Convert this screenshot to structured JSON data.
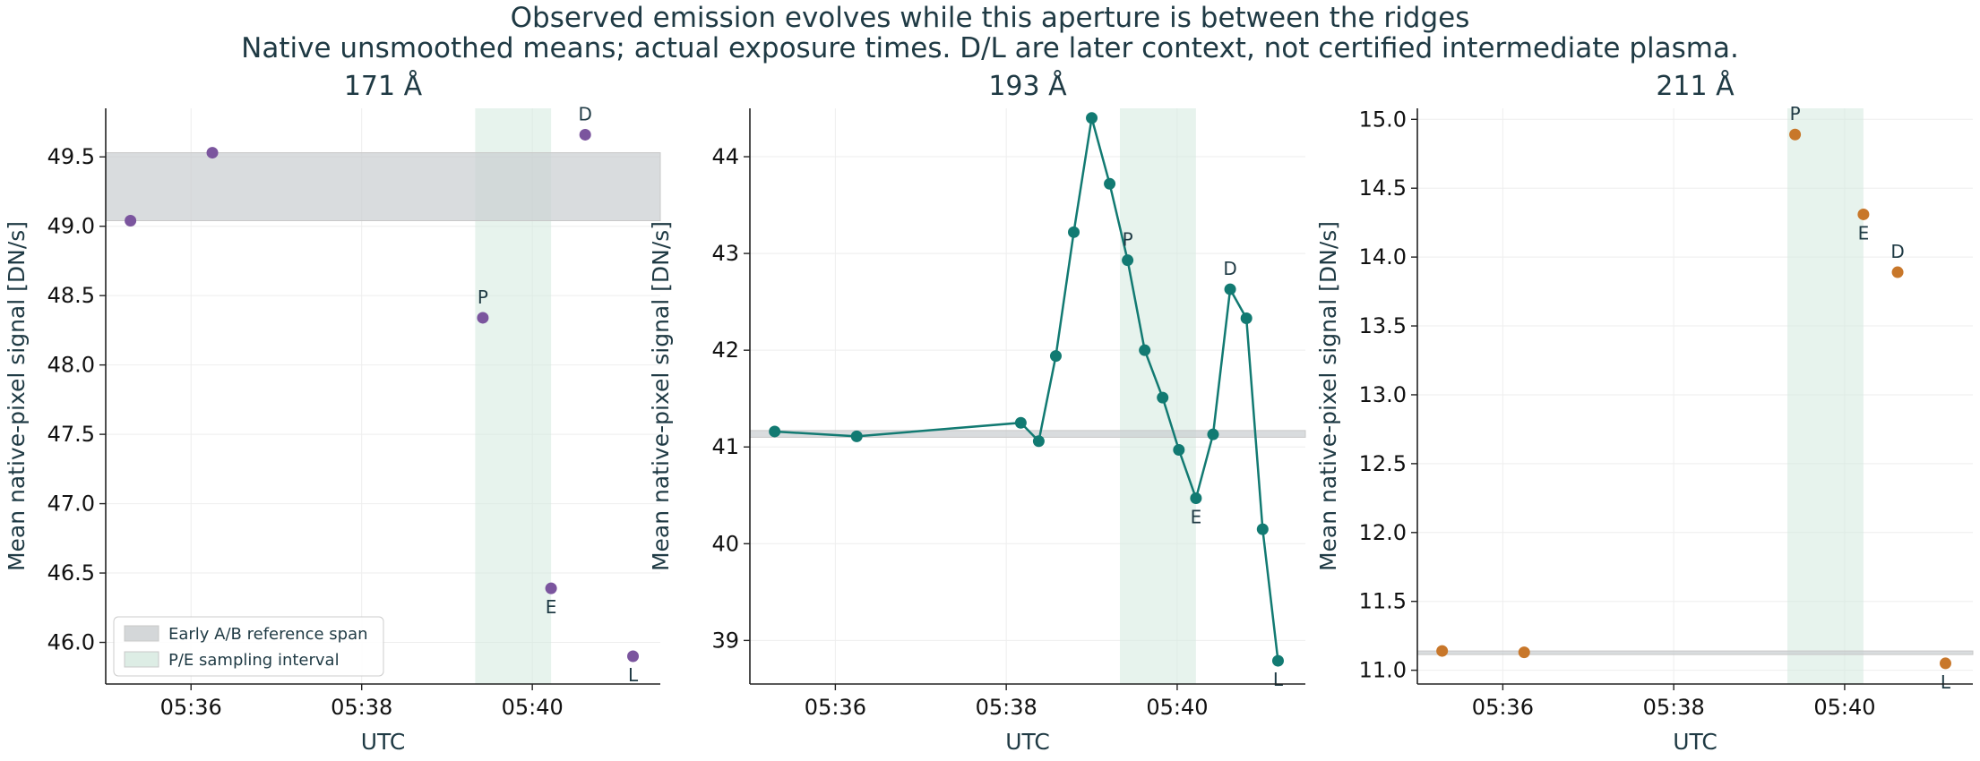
{
  "figure": {
    "title": "Observed emission evolves while this aperture is between the ridges",
    "subtitle": "Native unsmoothed means; actual exposure times. D/L are later context, not certified intermediate plasma."
  },
  "colors": {
    "text": "#1f3a44",
    "axis": "#222222",
    "grid": "#eeeeee",
    "reference_band": "#c9cdd0",
    "reference_line": "#c8c8c8",
    "pe_interval": "#d4e9de",
    "series_171": "#7b559e",
    "series_193": "#127a72",
    "series_211": "#c8772a"
  },
  "legend": {
    "placement": "lower-left of first panel",
    "items": [
      {
        "label": "Early A/B reference span",
        "kind": "reference"
      },
      {
        "label": "P/E sampling interval",
        "kind": "interval"
      }
    ]
  },
  "chart_data": [
    {
      "type": "scatter",
      "title": "171 Å",
      "xlabel": "UTC",
      "ylabel": "Mean native-pixel signal [DN/s]",
      "x_unit": "minutes after 05:00 UTC",
      "xlim": [
        35.0,
        41.5
      ],
      "ylim": [
        45.7,
        49.85
      ],
      "xticks": [
        {
          "v": 36,
          "label": "05:36"
        },
        {
          "v": 38,
          "label": "05:38"
        },
        {
          "v": 40,
          "label": "05:40"
        }
      ],
      "yticks": [
        {
          "v": 46.0,
          "label": "46.0"
        },
        {
          "v": 46.5,
          "label": "46.5"
        },
        {
          "v": 47.0,
          "label": "47.0"
        },
        {
          "v": 47.5,
          "label": "47.5"
        },
        {
          "v": 48.0,
          "label": "48.0"
        },
        {
          "v": 48.5,
          "label": "48.5"
        },
        {
          "v": 49.0,
          "label": "49.0"
        },
        {
          "v": 49.5,
          "label": "49.5"
        }
      ],
      "reference_span": [
        49.04,
        49.53
      ],
      "pe_interval": [
        39.33,
        40.22
      ],
      "connect_points": false,
      "color_key": "series_171",
      "points": [
        {
          "x": 35.29,
          "y": 49.04,
          "label": ""
        },
        {
          "x": 36.25,
          "y": 49.53,
          "label": ""
        },
        {
          "x": 39.42,
          "y": 48.34,
          "label": "P",
          "pos": "above"
        },
        {
          "x": 40.22,
          "y": 46.39,
          "label": "E",
          "pos": "below"
        },
        {
          "x": 40.62,
          "y": 49.66,
          "label": "D",
          "pos": "above"
        },
        {
          "x": 41.18,
          "y": 45.9,
          "label": "L",
          "pos": "below"
        }
      ]
    },
    {
      "type": "line",
      "title": "193 Å",
      "xlabel": "UTC",
      "ylabel": "Mean native-pixel signal [DN/s]",
      "x_unit": "minutes after 05:00 UTC",
      "xlim": [
        35.0,
        41.5
      ],
      "ylim": [
        38.55,
        44.5
      ],
      "xticks": [
        {
          "v": 36,
          "label": "05:36"
        },
        {
          "v": 38,
          "label": "05:38"
        },
        {
          "v": 40,
          "label": "05:40"
        }
      ],
      "yticks": [
        {
          "v": 39,
          "label": "39"
        },
        {
          "v": 40,
          "label": "40"
        },
        {
          "v": 41,
          "label": "41"
        },
        {
          "v": 42,
          "label": "42"
        },
        {
          "v": 43,
          "label": "43"
        },
        {
          "v": 44,
          "label": "44"
        }
      ],
      "reference_span": [
        41.1,
        41.17
      ],
      "pe_interval": [
        39.33,
        40.22
      ],
      "connect_points": true,
      "color_key": "series_193",
      "points": [
        {
          "x": 35.29,
          "y": 41.16,
          "label": ""
        },
        {
          "x": 36.25,
          "y": 41.11,
          "label": ""
        },
        {
          "x": 38.17,
          "y": 41.25,
          "label": ""
        },
        {
          "x": 38.38,
          "y": 41.06,
          "label": ""
        },
        {
          "x": 38.58,
          "y": 41.94,
          "label": ""
        },
        {
          "x": 38.79,
          "y": 43.22,
          "label": ""
        },
        {
          "x": 39.0,
          "y": 44.4,
          "label": ""
        },
        {
          "x": 39.21,
          "y": 43.72,
          "label": ""
        },
        {
          "x": 39.42,
          "y": 42.93,
          "label": "P",
          "pos": "above"
        },
        {
          "x": 39.62,
          "y": 42.0,
          "label": ""
        },
        {
          "x": 39.83,
          "y": 41.51,
          "label": ""
        },
        {
          "x": 40.02,
          "y": 40.97,
          "label": ""
        },
        {
          "x": 40.22,
          "y": 40.47,
          "label": "E",
          "pos": "below"
        },
        {
          "x": 40.42,
          "y": 41.13,
          "label": ""
        },
        {
          "x": 40.62,
          "y": 42.63,
          "label": "D",
          "pos": "above"
        },
        {
          "x": 40.81,
          "y": 42.33,
          "label": ""
        },
        {
          "x": 41.0,
          "y": 40.15,
          "label": ""
        },
        {
          "x": 41.18,
          "y": 38.79,
          "label": "L",
          "pos": "below"
        }
      ]
    },
    {
      "type": "scatter",
      "title": "211 Å",
      "xlabel": "UTC",
      "ylabel": "Mean native-pixel signal [DN/s]",
      "x_unit": "minutes after 05:00 UTC",
      "xlim": [
        35.0,
        41.5
      ],
      "ylim": [
        10.9,
        15.08
      ],
      "xticks": [
        {
          "v": 36,
          "label": "05:36"
        },
        {
          "v": 38,
          "label": "05:38"
        },
        {
          "v": 40,
          "label": "05:40"
        }
      ],
      "yticks": [
        {
          "v": 11.0,
          "label": "11.0"
        },
        {
          "v": 11.5,
          "label": "11.5"
        },
        {
          "v": 12.0,
          "label": "12.0"
        },
        {
          "v": 12.5,
          "label": "12.5"
        },
        {
          "v": 13.0,
          "label": "13.0"
        },
        {
          "v": 13.5,
          "label": "13.5"
        },
        {
          "v": 14.0,
          "label": "14.0"
        },
        {
          "v": 14.5,
          "label": "14.5"
        },
        {
          "v": 15.0,
          "label": "15.0"
        }
      ],
      "reference_span": [
        11.13,
        11.14
      ],
      "pe_interval": [
        39.33,
        40.22
      ],
      "connect_points": false,
      "color_key": "series_211",
      "points": [
        {
          "x": 35.29,
          "y": 11.14,
          "label": ""
        },
        {
          "x": 36.25,
          "y": 11.13,
          "label": ""
        },
        {
          "x": 39.42,
          "y": 14.89,
          "label": "P",
          "pos": "above"
        },
        {
          "x": 40.22,
          "y": 14.31,
          "label": "E",
          "pos": "below"
        },
        {
          "x": 40.62,
          "y": 13.89,
          "label": "D",
          "pos": "above"
        },
        {
          "x": 41.18,
          "y": 11.05,
          "label": "L",
          "pos": "below"
        }
      ]
    }
  ]
}
